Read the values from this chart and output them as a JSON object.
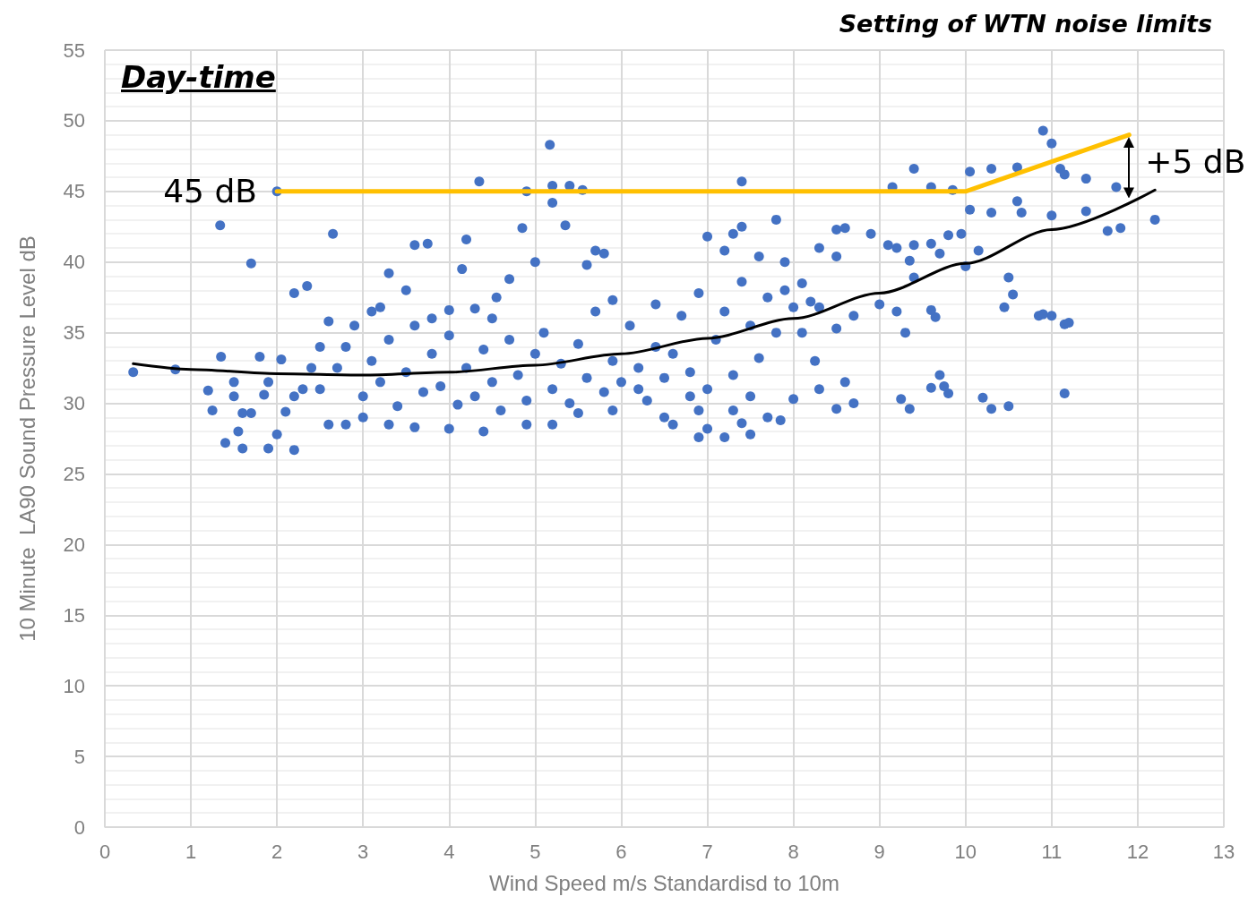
{
  "chart_data": {
    "type": "scatter",
    "title": "Setting of WTN noise limits",
    "xlabel": "Wind Speed m/s Standardisd to 10m",
    "ylabel": "10 Minute  LA90 Sound Pressure Level dB",
    "xlim": [
      0,
      13
    ],
    "xticks": [
      0,
      1,
      2,
      3,
      4,
      5,
      6,
      7,
      8,
      9,
      10,
      11,
      12,
      13
    ],
    "ylim": [
      0,
      55
    ],
    "yticks": [
      0,
      5,
      10,
      15,
      20,
      25,
      30,
      35,
      40,
      45,
      50,
      55
    ],
    "grid": true,
    "annotations": [
      "Day-time",
      {
        "text": "45 dB",
        "x": 2,
        "y": 45
      },
      "+5 dB"
    ],
    "series": [
      {
        "color": "#4472c4",
        "marker": "circle",
        "x": [
          0.33,
          0.82,
          1.34,
          1.7,
          1.35,
          1.4,
          1.6,
          1.9,
          2.0,
          2.2,
          2.35,
          2.65,
          1.2,
          1.25,
          1.55,
          1.5,
          1.7,
          1.85,
          2.1,
          2.2,
          2.0,
          1.8,
          2.05,
          1.5,
          2.3,
          2.5,
          2.6,
          3.1,
          3.3,
          3.6,
          3.75,
          3.5,
          4.0,
          4.15,
          4.2,
          4.3,
          4.35,
          4.55,
          4.7,
          4.9,
          5.0,
          5.17,
          5.2,
          5.35,
          5.4,
          5.55,
          5.2,
          4.85,
          5.6,
          5.7,
          5.8,
          5.9,
          6.4,
          7.4,
          7.3,
          7.4,
          7.0,
          7.2,
          7.6,
          7.8,
          7.9,
          8.3,
          8.5,
          8.5,
          8.6,
          8.9,
          9.4,
          9.15,
          9.6,
          9.85,
          10.05,
          10.3,
          10.6,
          10.9,
          11.0,
          11.1,
          11.15,
          11.4,
          11.75,
          12.2,
          11.65,
          11.8,
          11.4,
          11.0,
          10.6,
          10.65,
          10.3,
          10.05,
          9.95,
          9.8,
          9.6,
          9.4,
          9.2,
          9.1,
          9.35,
          9.7,
          10.15,
          10.0,
          10.5,
          10.55,
          10.85,
          11.0,
          11.15,
          11.2,
          10.9,
          10.45,
          9.65,
          9.6,
          9.4,
          9.2,
          9.3,
          9.0,
          10.3,
          10.2,
          10.5,
          11.15,
          9.25,
          9.35,
          9.6,
          9.75,
          9.7,
          9.8,
          8.7,
          8.5,
          8.3,
          8.1,
          8.0,
          8.25,
          8.3,
          8.5,
          8.6,
          8.7,
          7.7,
          7.85,
          7.5,
          7.2,
          7.4,
          6.9,
          7.0,
          6.6,
          6.8,
          6.5,
          6.2,
          5.9,
          5.5,
          5.2,
          4.9,
          4.4,
          4.0,
          3.6,
          3.3,
          3.0,
          2.8,
          2.5,
          2.7,
          2.8,
          2.9,
          3.0,
          3.1,
          3.2,
          3.3,
          3.4,
          3.5,
          3.6,
          3.7,
          3.8,
          3.9,
          4.0,
          4.1,
          4.2,
          4.3,
          4.4,
          4.5,
          4.6,
          4.7,
          4.8,
          4.9,
          5.0,
          5.1,
          5.2,
          5.3,
          5.4,
          5.5,
          5.6,
          5.7,
          5.8,
          5.9,
          6.0,
          6.1,
          6.2,
          6.3,
          6.4,
          6.5,
          6.6,
          6.7,
          6.8,
          6.9,
          7.0,
          7.1,
          7.2,
          7.3,
          7.4,
          7.5,
          7.6,
          7.7,
          7.8,
          7.9,
          8.0,
          8.1,
          8.2,
          7.5,
          7.3,
          6.9,
          3.2,
          3.8,
          4.5,
          2.6,
          2.4,
          2.2,
          1.9,
          1.6
        ],
        "values": [
          32.2,
          32.4,
          42.6,
          39.9,
          33.3,
          27.2,
          26.8,
          26.8,
          45.0,
          37.8,
          38.3,
          42,
          30.9,
          29.5,
          28,
          30.5,
          29.3,
          30.6,
          29.4,
          26.7,
          27.8,
          33.3,
          33.1,
          31.5,
          31,
          34,
          28.5,
          36.5,
          39.2,
          41.2,
          41.3,
          38,
          36.6,
          39.5,
          41.6,
          36.7,
          45.7,
          37.5,
          38.8,
          45,
          40,
          48.3,
          45.4,
          42.6,
          45.4,
          45.1,
          44.2,
          42.4,
          39.8,
          40.8,
          40.6,
          37.3,
          37,
          45.7,
          42,
          42.5,
          41.8,
          40.8,
          40.4,
          43,
          40,
          41,
          40.4,
          42.3,
          42.4,
          42,
          46.6,
          45.3,
          45.3,
          45.1,
          46.4,
          46.6,
          46.7,
          49.3,
          48.4,
          46.6,
          46.2,
          45.9,
          45.3,
          43,
          42.2,
          42.4,
          43.6,
          43.3,
          44.3,
          43.5,
          43.5,
          43.7,
          42,
          41.9,
          41.3,
          41.2,
          41,
          41.2,
          40.1,
          40.6,
          40.8,
          39.7,
          38.9,
          37.7,
          36.2,
          36.2,
          35.6,
          35.7,
          36.3,
          36.8,
          36.1,
          36.6,
          38.9,
          36.5,
          35,
          37,
          29.6,
          30.4,
          29.8,
          30.7,
          30.3,
          29.6,
          31.1,
          31.2,
          32,
          30.7,
          36.2,
          35.3,
          36.8,
          35,
          30.3,
          33,
          31,
          29.6,
          31.5,
          30,
          29,
          28.8,
          27.8,
          27.6,
          28.6,
          27.6,
          28.2,
          28.5,
          30.5,
          29,
          31,
          29.5,
          29.3,
          28.5,
          28.5,
          28,
          28.2,
          28.3,
          28.5,
          29,
          28.5,
          31,
          32.5,
          34,
          35.5,
          30.5,
          33,
          31.5,
          34.5,
          29.8,
          32.2,
          35.5,
          30.8,
          33.5,
          31.2,
          34.8,
          29.9,
          32.5,
          30.5,
          33.8,
          31.5,
          29.5,
          34.5,
          32,
          30.2,
          33.5,
          35,
          31,
          32.8,
          30,
          34.2,
          31.8,
          36.5,
          30.8,
          33,
          31.5,
          35.5,
          32.5,
          30.2,
          34,
          31.8,
          33.5,
          36.2,
          32.2,
          37.8,
          31,
          34.5,
          36.5,
          32,
          38.6,
          35.5,
          33.2,
          37.5,
          35,
          38,
          36.8,
          38.5,
          37.2,
          30.5,
          29.5,
          29.5,
          36.8,
          36,
          36,
          35.8,
          32.5,
          30.5,
          31.5,
          29.3
        ]
      },
      {
        "type": "line",
        "color": "#000000",
        "marker": "none",
        "line_style": "solid",
        "x": [
          0.33,
          1,
          2,
          3,
          4,
          5,
          6,
          7,
          8,
          9,
          10,
          11,
          12.2
        ],
        "values": [
          32.8,
          32.4,
          32.1,
          32.0,
          32.2,
          32.7,
          33.5,
          34.6,
          36.0,
          37.8,
          39.9,
          42.3,
          45.1
        ]
      },
      {
        "type": "line",
        "color": "#ffc000",
        "marker": "none",
        "line_style": "solid",
        "x": [
          2,
          10,
          11.9
        ],
        "values": [
          45,
          45,
          49
        ]
      }
    ]
  }
}
